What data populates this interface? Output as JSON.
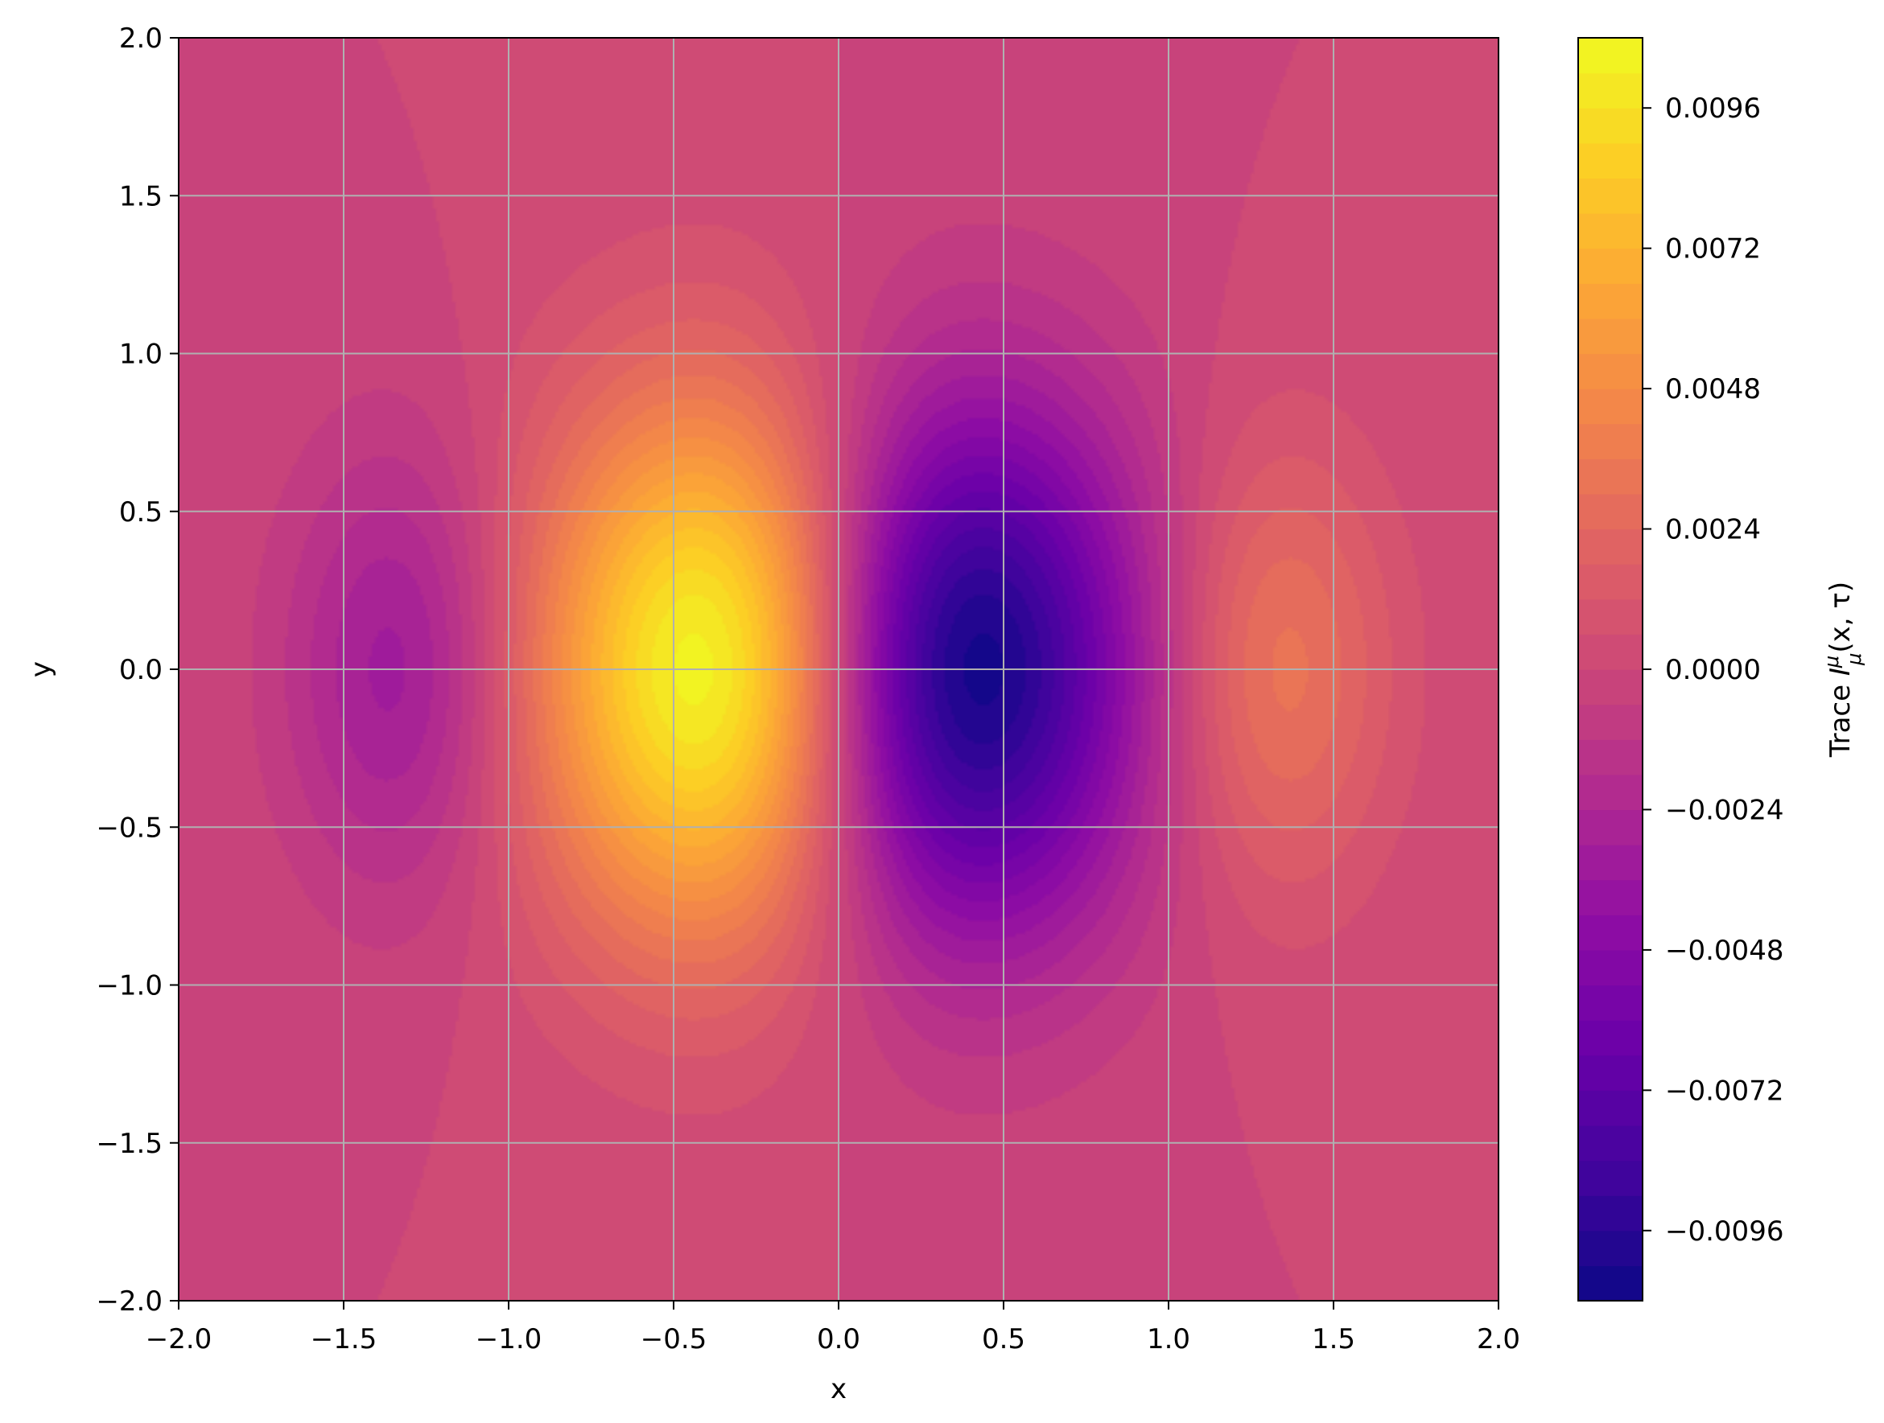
{
  "chart_data": {
    "type": "heatmap",
    "subtype": "filled-contour",
    "xlabel": "x",
    "ylabel": "y",
    "xlim": [
      -2.0,
      2.0
    ],
    "ylim": [
      -2.0,
      2.0
    ],
    "x_ticks": [
      "−2.0",
      "−1.5",
      "−1.0",
      "−0.5",
      "0.0",
      "0.5",
      "1.0",
      "1.5",
      "2.0"
    ],
    "x_tick_values": [
      -2.0,
      -1.5,
      -1.0,
      -0.5,
      0.0,
      0.5,
      1.0,
      1.5,
      2.0
    ],
    "y_ticks": [
      "2.0",
      "1.5",
      "1.0",
      "0.5",
      "0.0",
      "−0.5",
      "−1.0",
      "−1.5",
      "−2.0"
    ],
    "y_tick_values": [
      2.0,
      1.5,
      1.0,
      0.5,
      0.0,
      -0.5,
      -1.0,
      -1.5,
      -2.0
    ],
    "grid": true,
    "colormap": "plasma",
    "colorbar": {
      "label_prefix": "Trace ",
      "label_var": "I",
      "label_sup": "μ",
      "label_sub": "μ",
      "label_args": "(x, τ)",
      "ticks": [
        "0.0096",
        "0.0072",
        "0.0048",
        "0.0024",
        "0.0000",
        "−0.0024",
        "−0.0048",
        "−0.0072",
        "−0.0096"
      ],
      "tick_values": [
        0.0096,
        0.0072,
        0.0048,
        0.0024,
        0.0,
        -0.0024,
        -0.0048,
        -0.0072,
        -0.0096
      ],
      "vmin": -0.0108,
      "vmax": 0.0108,
      "levels": 36
    },
    "features": [
      {
        "kind": "maximum",
        "x": -0.45,
        "y": 0.0,
        "value": 0.0104
      },
      {
        "kind": "minimum",
        "x": 0.42,
        "y": 0.0,
        "value": -0.0104
      },
      {
        "kind": "local-minimum",
        "x": -1.32,
        "y": 0.0,
        "value": -0.0034
      },
      {
        "kind": "local-maximum",
        "x": 1.32,
        "y": 0.0,
        "value": 0.0034
      }
    ]
  }
}
